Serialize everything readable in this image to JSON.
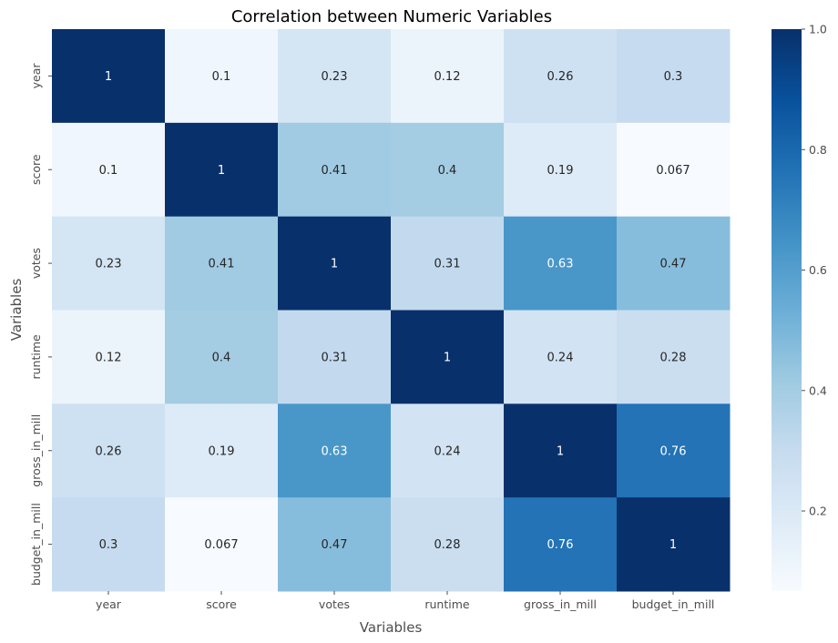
{
  "chart_data": {
    "type": "heatmap",
    "title": "Correlation between Numeric Variables",
    "xlabel": "Variables",
    "ylabel": "Variables",
    "x_categories": [
      "year",
      "score",
      "votes",
      "runtime",
      "gross_in_mill",
      "budget_in_mill"
    ],
    "y_categories": [
      "year",
      "score",
      "votes",
      "runtime",
      "gross_in_mill",
      "budget_in_mill"
    ],
    "values": [
      [
        1,
        0.1,
        0.23,
        0.12,
        0.26,
        0.3
      ],
      [
        0.1,
        1,
        0.41,
        0.4,
        0.19,
        0.067
      ],
      [
        0.23,
        0.41,
        1,
        0.31,
        0.63,
        0.47
      ],
      [
        0.12,
        0.4,
        0.31,
        1,
        0.24,
        0.28
      ],
      [
        0.26,
        0.19,
        0.63,
        0.24,
        1,
        0.76
      ],
      [
        0.3,
        0.067,
        0.47,
        0.28,
        0.76,
        1
      ]
    ],
    "annotations": true,
    "colormap": "Blues",
    "colorbar": {
      "range": [
        0.067,
        1.0
      ],
      "ticks": [
        0.2,
        0.4,
        0.6,
        0.8,
        1.0
      ],
      "tick_labels": [
        "0.2",
        "0.4",
        "0.6",
        "0.8",
        "1.0"
      ]
    }
  }
}
